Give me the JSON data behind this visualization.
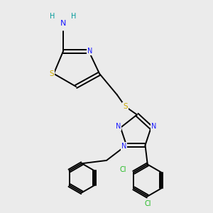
{
  "background_color": "#ebebeb",
  "atom_colors": {
    "C": "#000000",
    "N": "#1a1aff",
    "S": "#ccaa00",
    "Cl": "#22bb22",
    "H": "#009999"
  },
  "bond_color": "#000000",
  "figsize": [
    3.0,
    3.0
  ],
  "dpi": 100,
  "lw": 1.4,
  "fs": 7.0
}
